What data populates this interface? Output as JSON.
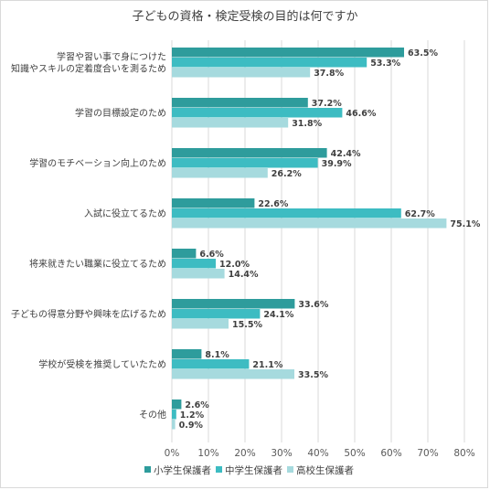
{
  "chart_data": {
    "type": "bar",
    "orientation": "horizontal",
    "title": "子どもの資格・検定受検の目的は何ですか",
    "categories": [
      [
        "学習や習い事で身につけた",
        "知識やスキルの定着度合いを測るため"
      ],
      [
        "学習の目標設定のため"
      ],
      [
        "学習のモチベーション向上のため"
      ],
      [
        "入試に役立てるため"
      ],
      [
        "将来就きたい職業に役立てるため"
      ],
      [
        "子どもの得意分野や興味を広げるため"
      ],
      [
        "学校が受検を推奨していたため"
      ],
      [
        "その他"
      ]
    ],
    "series": [
      {
        "name": "小学生保護者",
        "color": "#2E9C9C",
        "values": [
          63.5,
          37.2,
          42.4,
          22.6,
          6.6,
          33.6,
          8.1,
          2.6
        ]
      },
      {
        "name": "中学生保護者",
        "color": "#3DBCC2",
        "values": [
          53.3,
          46.6,
          39.9,
          62.7,
          12.0,
          24.1,
          21.1,
          1.2
        ]
      },
      {
        "name": "高校生保護者",
        "color": "#A6DADE",
        "values": [
          37.8,
          31.8,
          26.2,
          75.1,
          14.4,
          15.5,
          33.5,
          0.9
        ]
      }
    ],
    "x_ticks": [
      "0%",
      "10%",
      "20%",
      "30%",
      "40%",
      "50%",
      "60%",
      "70%",
      "80%"
    ],
    "xlim": [
      0,
      80
    ],
    "value_suffix": "%",
    "grid": "vertical",
    "legend_position": "bottom"
  }
}
